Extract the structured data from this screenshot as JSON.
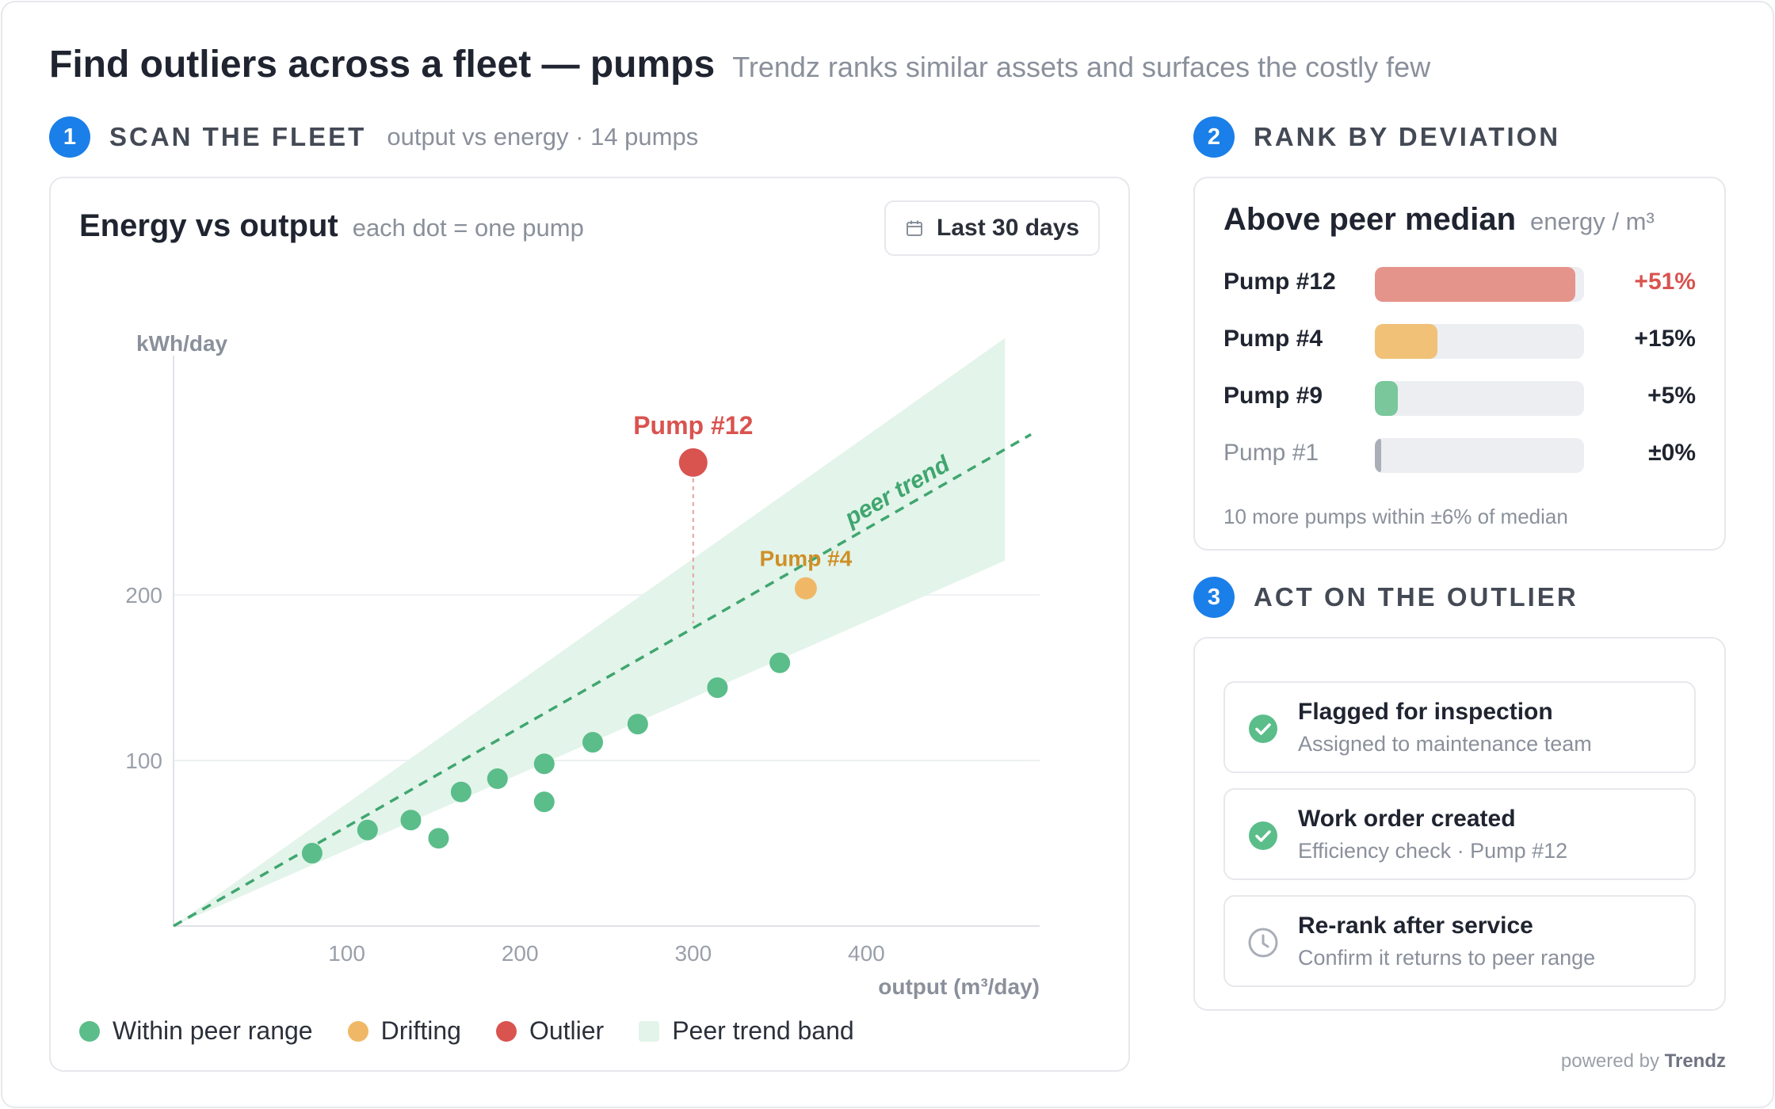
{
  "header": {
    "title": "Find outliers across a fleet — pumps",
    "subtitle": "Trendz ranks similar assets and surfaces the costly few"
  },
  "sections": [
    {
      "num": "1",
      "label": "SCAN THE FLEET",
      "sub": "output vs energy · 14 pumps"
    },
    {
      "num": "2",
      "label": "RANK BY DEVIATION"
    },
    {
      "num": "3",
      "label": "ACT ON THE OUTLIER"
    }
  ],
  "scatter": {
    "title": "Energy vs output",
    "subtitle": "each dot = one pump",
    "range_button": "Last 30 days",
    "range_icon": "calendar-icon",
    "legend": [
      {
        "label": "Within peer range",
        "color": "#5bbd8a"
      },
      {
        "label": "Drifting",
        "color": "#f0b866"
      },
      {
        "label": "Outlier",
        "color": "#d9534f"
      },
      {
        "label": "Peer trend band",
        "color": "#e3f4ea"
      }
    ]
  },
  "chart_data": {
    "type": "scatter",
    "ylabel": "kWh/day",
    "xlabel": "output (m³/day)",
    "x_ticks": [
      "100",
      "200",
      "300",
      "400"
    ],
    "y_ticks": [
      "100",
      "200"
    ],
    "xlim": [
      0,
      500
    ],
    "ylim": [
      0,
      335
    ],
    "grid": true,
    "trend_label": "peer trend",
    "trend": {
      "slope": 0.6
    },
    "band": {
      "upper_slope": 0.74,
      "lower_slope": 0.46
    },
    "colors": {
      "peer": "#5bbd8a",
      "drifting": "#f0b866",
      "outlier": "#d9534f",
      "band": "#e3f4ea",
      "trend": "#3fa66f"
    },
    "points": [
      {
        "x": 80,
        "y": 44,
        "status": "peer"
      },
      {
        "x": 112,
        "y": 58,
        "status": "peer"
      },
      {
        "x": 137,
        "y": 64,
        "status": "peer"
      },
      {
        "x": 153,
        "y": 53,
        "status": "peer"
      },
      {
        "x": 166,
        "y": 81,
        "status": "peer"
      },
      {
        "x": 187,
        "y": 89,
        "status": "peer"
      },
      {
        "x": 214,
        "y": 98,
        "status": "peer"
      },
      {
        "x": 214,
        "y": 75,
        "status": "peer"
      },
      {
        "x": 242,
        "y": 111,
        "status": "peer"
      },
      {
        "x": 268,
        "y": 122,
        "status": "peer"
      },
      {
        "x": 314,
        "y": 144,
        "status": "peer"
      },
      {
        "x": 350,
        "y": 159,
        "status": "peer"
      },
      {
        "x": 365,
        "y": 204,
        "status": "drifting",
        "label": "Pump #4"
      },
      {
        "x": 300,
        "y": 280,
        "status": "outlier",
        "label": "Pump #12"
      }
    ]
  },
  "rank": {
    "title": "Above peer median",
    "unit": "energy / m³",
    "items": [
      {
        "name": "Pump #12",
        "value": "+51%",
        "fill": 0.96,
        "color": "#e5948b",
        "value_color": "#d9534f",
        "muted": false
      },
      {
        "name": "Pump #4",
        "value": "+15%",
        "fill": 0.3,
        "color": "#f0c176",
        "value_color": "#1f2430",
        "muted": false
      },
      {
        "name": "Pump #9",
        "value": "+5%",
        "fill": 0.11,
        "color": "#79c79a",
        "value_color": "#1f2430",
        "muted": false
      },
      {
        "name": "Pump #1",
        "value": "±0%",
        "fill": 0.02,
        "color": "#a9aeb7",
        "value_color": "#1f2430",
        "muted": true
      }
    ],
    "note": "10 more pumps within ±6% of median"
  },
  "actions": [
    {
      "title": "Flagged for inspection",
      "sub": "Assigned to maintenance team",
      "icon": "check-circle-icon"
    },
    {
      "title": "Work order created",
      "sub": "Efficiency check · Pump #12",
      "icon": "check-circle-icon"
    },
    {
      "title": "Re-rank after service",
      "sub": "Confirm it returns to peer range",
      "icon": "clock-icon"
    }
  ],
  "footer": {
    "prefix": "powered by",
    "brand": "Trendz"
  }
}
